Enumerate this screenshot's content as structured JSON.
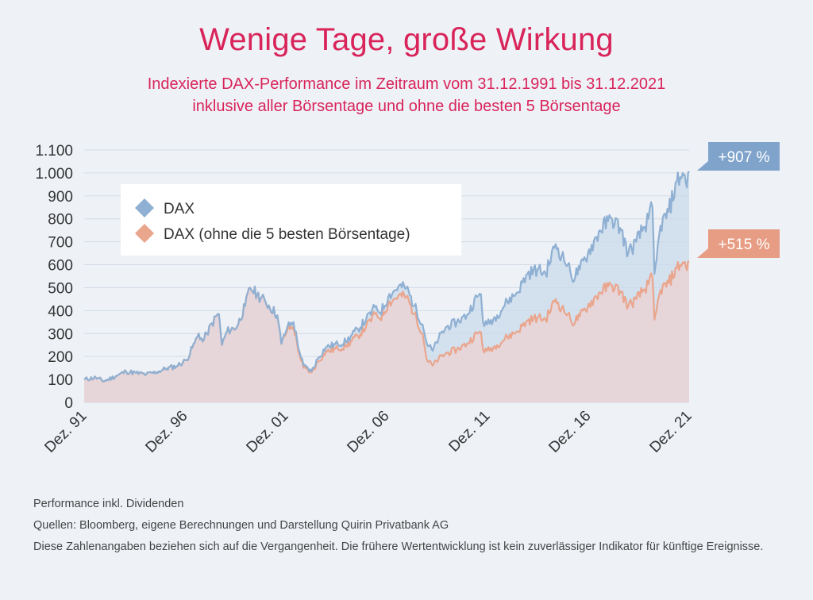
{
  "title": "Wenige Tage, große Wirkung",
  "subtitle_line1": "Indexierte DAX-Performance im Zeitraum vom 31.12.1991 bis 31.12.2021",
  "subtitle_line2": "inklusive aller Börsentage und ohne die besten 5 Börsentage",
  "footer": {
    "note": "Performance inkl. Dividenden",
    "sources": "Quellen: Bloomberg, eigene Berechnungen und Darstellung Quirin Privatbank AG",
    "disclaimer": "Diese Zahlenangaben beziehen sich auf die Vergangenheit. Die frühere Wertentwicklung ist kein zuverlässiger Indikator für künftige Ereignisse."
  },
  "colors": {
    "dax": "#8fb0d3",
    "dax_fill": "#c9d9ea",
    "dax_ex5": "#eaa58d",
    "dax_ex5_fill": "#ecd3d2",
    "title": "#d9245a",
    "grid": "#d3dbe5",
    "axis_text": "#333333"
  },
  "chart_data": {
    "type": "line",
    "ylim": [
      0,
      1100
    ],
    "y_ticks": [
      {
        "value": 0,
        "label": "0"
      },
      {
        "value": 100,
        "label": "100"
      },
      {
        "value": 200,
        "label": "200"
      },
      {
        "value": 300,
        "label": "300"
      },
      {
        "value": 400,
        "label": "400"
      },
      {
        "value": 500,
        "label": "500"
      },
      {
        "value": 600,
        "label": "600"
      },
      {
        "value": 700,
        "label": "700"
      },
      {
        "value": 800,
        "label": "800"
      },
      {
        "value": 900,
        "label": "900"
      },
      {
        "value": 1000,
        "label": "1.000"
      },
      {
        "value": 1100,
        "label": "1.100"
      }
    ],
    "x_range": [
      1991.92,
      2021.92
    ],
    "x_ticks": [
      {
        "value": 1991.92,
        "label": "Dez. 91"
      },
      {
        "value": 1996.92,
        "label": "Dez. 96"
      },
      {
        "value": 2001.92,
        "label": "Dez. 01"
      },
      {
        "value": 2006.92,
        "label": "Dez. 06"
      },
      {
        "value": 2011.92,
        "label": "Dez. 11"
      },
      {
        "value": 2016.92,
        "label": "Dez. 16"
      },
      {
        "value": 2021.92,
        "label": "Dez. 21"
      }
    ],
    "legend_position": "top-left",
    "grid": true,
    "series": [
      {
        "name": "DAX",
        "end_label": "+907 %",
        "points": [
          [
            1991.92,
            100
          ],
          [
            1992.5,
            108
          ],
          [
            1992.9,
            92
          ],
          [
            1993.5,
            115
          ],
          [
            1994.0,
            135
          ],
          [
            1994.5,
            128
          ],
          [
            1995.0,
            122
          ],
          [
            1995.5,
            132
          ],
          [
            1996.0,
            148
          ],
          [
            1996.5,
            158
          ],
          [
            1997.0,
            185
          ],
          [
            1997.4,
            260
          ],
          [
            1997.6,
            300
          ],
          [
            1997.8,
            265
          ],
          [
            1998.0,
            300
          ],
          [
            1998.5,
            380
          ],
          [
            1998.6,
            385
          ],
          [
            1998.75,
            250
          ],
          [
            1999.0,
            310
          ],
          [
            1999.5,
            330
          ],
          [
            1999.9,
            420
          ],
          [
            2000.15,
            500
          ],
          [
            2000.5,
            470
          ],
          [
            2000.9,
            440
          ],
          [
            2001.5,
            380
          ],
          [
            2001.7,
            255
          ],
          [
            2002.0,
            330
          ],
          [
            2002.3,
            350
          ],
          [
            2002.6,
            220
          ],
          [
            2002.8,
            160
          ],
          [
            2003.2,
            135
          ],
          [
            2003.5,
            190
          ],
          [
            2003.9,
            240
          ],
          [
            2004.5,
            255
          ],
          [
            2004.9,
            265
          ],
          [
            2005.5,
            320
          ],
          [
            2005.9,
            360
          ],
          [
            2006.4,
            420
          ],
          [
            2006.6,
            390
          ],
          [
            2007.0,
            460
          ],
          [
            2007.5,
            505
          ],
          [
            2007.9,
            500
          ],
          [
            2008.3,
            420
          ],
          [
            2008.7,
            340
          ],
          [
            2008.9,
            260
          ],
          [
            2009.2,
            225
          ],
          [
            2009.5,
            280
          ],
          [
            2009.9,
            330
          ],
          [
            2010.4,
            350
          ],
          [
            2010.9,
            380
          ],
          [
            2011.4,
            460
          ],
          [
            2011.6,
            470
          ],
          [
            2011.7,
            350
          ],
          [
            2011.9,
            340
          ],
          [
            2012.4,
            380
          ],
          [
            2012.9,
            440
          ],
          [
            2013.4,
            480
          ],
          [
            2013.9,
            560
          ],
          [
            2014.4,
            580
          ],
          [
            2014.8,
            560
          ],
          [
            2015.3,
            690
          ],
          [
            2015.6,
            640
          ],
          [
            2015.9,
            600
          ],
          [
            2016.1,
            540
          ],
          [
            2016.5,
            580
          ],
          [
            2016.9,
            650
          ],
          [
            2017.5,
            750
          ],
          [
            2017.9,
            790
          ],
          [
            2018.1,
            800
          ],
          [
            2018.5,
            760
          ],
          [
            2018.9,
            650
          ],
          [
            2019.3,
            700
          ],
          [
            2019.9,
            800
          ],
          [
            2020.1,
            850
          ],
          [
            2020.2,
            560
          ],
          [
            2020.3,
            620
          ],
          [
            2020.5,
            770
          ],
          [
            2020.9,
            830
          ],
          [
            2021.3,
            960
          ],
          [
            2021.6,
            1000
          ],
          [
            2021.75,
            960
          ],
          [
            2021.92,
            1007
          ]
        ]
      },
      {
        "name": "DAX (ohne die 5 besten Börsentage)",
        "end_label": "+515 %",
        "points": [
          [
            1991.92,
            100
          ],
          [
            1992.5,
            108
          ],
          [
            1992.9,
            92
          ],
          [
            1993.5,
            115
          ],
          [
            1994.0,
            135
          ],
          [
            1994.5,
            128
          ],
          [
            1995.0,
            122
          ],
          [
            1995.5,
            132
          ],
          [
            1996.0,
            148
          ],
          [
            1996.5,
            158
          ],
          [
            1997.0,
            185
          ],
          [
            1997.4,
            260
          ],
          [
            1997.6,
            300
          ],
          [
            1997.8,
            265
          ],
          [
            1998.0,
            300
          ],
          [
            1998.5,
            380
          ],
          [
            1998.6,
            385
          ],
          [
            1998.75,
            250
          ],
          [
            1999.0,
            310
          ],
          [
            1999.5,
            330
          ],
          [
            1999.9,
            420
          ],
          [
            2000.15,
            500
          ],
          [
            2000.5,
            470
          ],
          [
            2000.9,
            440
          ],
          [
            2001.5,
            380
          ],
          [
            2001.7,
            255
          ],
          [
            2002.0,
            318
          ],
          [
            2002.3,
            330
          ],
          [
            2002.6,
            205
          ],
          [
            2002.8,
            150
          ],
          [
            2003.2,
            130
          ],
          [
            2003.5,
            175
          ],
          [
            2003.9,
            220
          ],
          [
            2004.5,
            235
          ],
          [
            2004.9,
            245
          ],
          [
            2005.5,
            290
          ],
          [
            2005.9,
            330
          ],
          [
            2006.4,
            390
          ],
          [
            2006.6,
            365
          ],
          [
            2007.0,
            430
          ],
          [
            2007.5,
            465
          ],
          [
            2007.9,
            460
          ],
          [
            2008.3,
            385
          ],
          [
            2008.7,
            300
          ],
          [
            2008.9,
            190
          ],
          [
            2009.2,
            160
          ],
          [
            2009.5,
            190
          ],
          [
            2009.9,
            215
          ],
          [
            2010.4,
            230
          ],
          [
            2010.9,
            255
          ],
          [
            2011.4,
            300
          ],
          [
            2011.6,
            305
          ],
          [
            2011.7,
            230
          ],
          [
            2011.9,
            225
          ],
          [
            2012.4,
            250
          ],
          [
            2012.9,
            285
          ],
          [
            2013.4,
            310
          ],
          [
            2013.9,
            355
          ],
          [
            2014.4,
            370
          ],
          [
            2014.8,
            360
          ],
          [
            2015.3,
            450
          ],
          [
            2015.6,
            410
          ],
          [
            2015.9,
            385
          ],
          [
            2016.1,
            345
          ],
          [
            2016.5,
            375
          ],
          [
            2016.9,
            420
          ],
          [
            2017.5,
            480
          ],
          [
            2017.9,
            505
          ],
          [
            2018.1,
            510
          ],
          [
            2018.5,
            485
          ],
          [
            2018.9,
            420
          ],
          [
            2019.3,
            450
          ],
          [
            2019.9,
            515
          ],
          [
            2020.1,
            545
          ],
          [
            2020.2,
            360
          ],
          [
            2020.3,
            400
          ],
          [
            2020.5,
            490
          ],
          [
            2020.9,
            520
          ],
          [
            2021.3,
            585
          ],
          [
            2021.6,
            610
          ],
          [
            2021.75,
            595
          ],
          [
            2021.92,
            615
          ]
        ]
      }
    ]
  }
}
